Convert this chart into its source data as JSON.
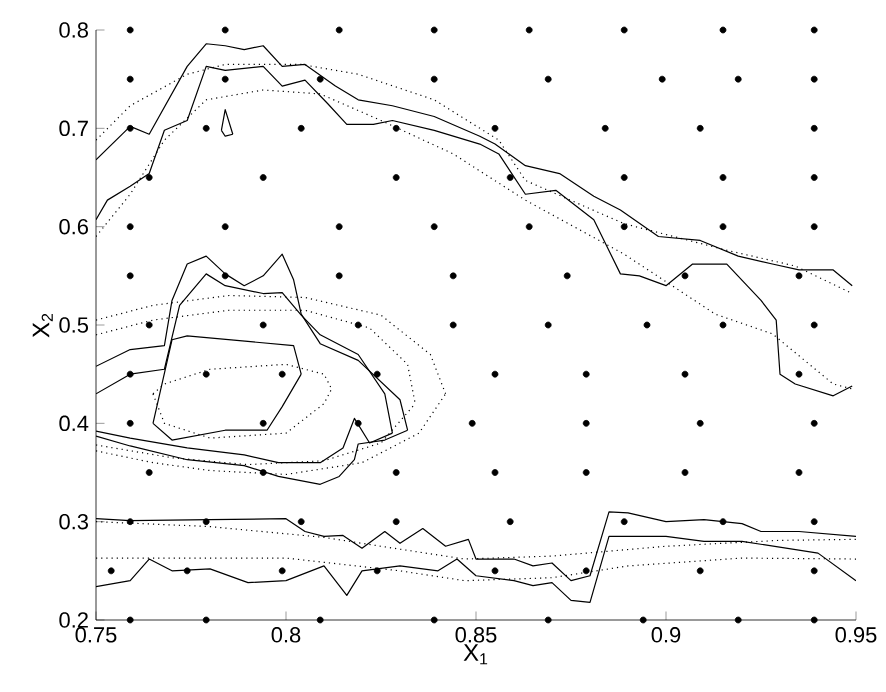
{
  "chart_data": {
    "type": "line",
    "xlabel": "X$_{1}$",
    "ylabel": "X$_{2}$",
    "xlim": [
      0.75,
      0.95
    ],
    "ylim": [
      0.2,
      0.8
    ],
    "xticks": [
      0.75,
      0.8,
      0.85,
      0.9,
      0.95
    ],
    "yticks": [
      0.2,
      0.3,
      0.4,
      0.5,
      0.6,
      0.7,
      0.8
    ],
    "grid": false,
    "series": [
      {
        "type": "scatter",
        "color": "#000000",
        "marker": "circle",
        "x": [
          0.759,
          0.784,
          0.814,
          0.839,
          0.864,
          0.889,
          0.915,
          0.939,
          0.759,
          0.784,
          0.809,
          0.839,
          0.869,
          0.899,
          0.919,
          0.939,
          0.759,
          0.779,
          0.804,
          0.829,
          0.855,
          0.884,
          0.909,
          0.939,
          0.764,
          0.794,
          0.829,
          0.859,
          0.889,
          0.915,
          0.939,
          0.759,
          0.784,
          0.814,
          0.839,
          0.864,
          0.889,
          0.915,
          0.939,
          0.759,
          0.784,
          0.814,
          0.844,
          0.874,
          0.905,
          0.935,
          0.764,
          0.794,
          0.819,
          0.844,
          0.869,
          0.895,
          0.915,
          0.939,
          0.759,
          0.779,
          0.799,
          0.824,
          0.855,
          0.879,
          0.905,
          0.935,
          0.759,
          0.794,
          0.819,
          0.849,
          0.879,
          0.909,
          0.939,
          0.764,
          0.794,
          0.829,
          0.855,
          0.879,
          0.905,
          0.935,
          0.759,
          0.779,
          0.804,
          0.829,
          0.859,
          0.889,
          0.915,
          0.939,
          0.754,
          0.774,
          0.799,
          0.824,
          0.855,
          0.879,
          0.909,
          0.939,
          0.759,
          0.779,
          0.809,
          0.839,
          0.869,
          0.894,
          0.919,
          0.939
        ],
        "values": [
          0.8,
          0.8,
          0.8,
          0.8,
          0.8,
          0.8,
          0.8,
          0.8,
          0.75,
          0.75,
          0.75,
          0.75,
          0.75,
          0.75,
          0.75,
          0.75,
          0.7,
          0.7,
          0.7,
          0.7,
          0.7,
          0.7,
          0.7,
          0.7,
          0.65,
          0.65,
          0.65,
          0.65,
          0.65,
          0.65,
          0.65,
          0.6,
          0.6,
          0.6,
          0.6,
          0.6,
          0.6,
          0.6,
          0.6,
          0.55,
          0.55,
          0.55,
          0.55,
          0.55,
          0.55,
          0.55,
          0.5,
          0.5,
          0.5,
          0.5,
          0.5,
          0.5,
          0.5,
          0.5,
          0.45,
          0.45,
          0.45,
          0.45,
          0.45,
          0.45,
          0.45,
          0.45,
          0.4,
          0.4,
          0.4,
          0.4,
          0.4,
          0.4,
          0.4,
          0.35,
          0.35,
          0.35,
          0.35,
          0.35,
          0.35,
          0.35,
          0.3,
          0.3,
          0.3,
          0.3,
          0.3,
          0.3,
          0.3,
          0.3,
          0.25,
          0.25,
          0.25,
          0.25,
          0.25,
          0.25,
          0.25,
          0.25,
          0.2,
          0.2,
          0.2,
          0.2,
          0.2,
          0.2,
          0.2,
          0.2
        ]
      },
      {
        "color": "#000000",
        "line_style": "solid",
        "x": [
          0.75,
          0.759,
          0.764,
          0.774,
          0.779,
          0.784,
          0.789,
          0.794,
          0.799,
          0.805,
          0.813,
          0.819,
          0.828,
          0.839,
          0.851,
          0.855,
          0.863,
          0.872,
          0.881,
          0.888,
          0.898,
          0.909,
          0.919,
          0.928,
          0.935,
          0.944,
          0.949
        ],
        "values": [
          0.668,
          0.702,
          0.694,
          0.763,
          0.786,
          0.784,
          0.78,
          0.784,
          0.763,
          0.765,
          0.743,
          0.729,
          0.723,
          0.712,
          0.692,
          0.684,
          0.662,
          0.654,
          0.631,
          0.617,
          0.59,
          0.586,
          0.57,
          0.562,
          0.556,
          0.556,
          0.54
        ]
      },
      {
        "color": "#000000",
        "line_style": "solid",
        "x": [
          0.75,
          0.753,
          0.759,
          0.764,
          0.768,
          0.774,
          0.779,
          0.784,
          0.794,
          0.799,
          0.805,
          0.811,
          0.816,
          0.823,
          0.828,
          0.839,
          0.851,
          0.856,
          0.863,
          0.871,
          0.881,
          0.888,
          0.893,
          0.9,
          0.907,
          0.916,
          0.925,
          0.929,
          0.93,
          0.934,
          0.944,
          0.949
        ],
        "values": [
          0.607,
          0.627,
          0.641,
          0.654,
          0.698,
          0.708,
          0.763,
          0.759,
          0.763,
          0.743,
          0.749,
          0.725,
          0.704,
          0.704,
          0.708,
          0.698,
          0.684,
          0.674,
          0.633,
          0.637,
          0.607,
          0.552,
          0.55,
          0.54,
          0.562,
          0.562,
          0.525,
          0.505,
          0.45,
          0.44,
          0.428,
          0.438
        ]
      },
      {
        "color": "#000000",
        "line_style": "dotted",
        "x": [
          0.75,
          0.759,
          0.774,
          0.784,
          0.804,
          0.819,
          0.839,
          0.856,
          0.863,
          0.889,
          0.916,
          0.934,
          0.949
        ],
        "values": [
          0.688,
          0.723,
          0.755,
          0.765,
          0.765,
          0.755,
          0.729,
          0.688,
          0.647,
          0.603,
          0.576,
          0.56,
          0.532
        ]
      },
      {
        "color": "#000000",
        "line_style": "dotted",
        "x": [
          0.75,
          0.759,
          0.768,
          0.779,
          0.794,
          0.809,
          0.825,
          0.844,
          0.863,
          0.889,
          0.913,
          0.928,
          0.944,
          0.949
        ],
        "values": [
          0.59,
          0.633,
          0.688,
          0.729,
          0.739,
          0.735,
          0.708,
          0.674,
          0.627,
          0.572,
          0.511,
          0.491,
          0.44,
          0.435
        ]
      },
      {
        "color": "#000000",
        "line_style": "solid",
        "x": [
          0.75,
          0.759,
          0.768,
          0.77,
          0.774,
          0.779,
          0.784,
          0.789,
          0.794,
          0.799,
          0.802,
          0.804,
          0.809,
          0.819,
          0.83,
          0.832
        ],
        "values": [
          0.458,
          0.475,
          0.479,
          0.525,
          0.562,
          0.57,
          0.552,
          0.54,
          0.55,
          0.572,
          0.546,
          0.511,
          0.481,
          0.464,
          0.424,
          0.393
        ]
      },
      {
        "color": "#000000",
        "line_style": "solid",
        "x": [
          0.75,
          0.759,
          0.774,
          0.789,
          0.798,
          0.809,
          0.814,
          0.818,
          0.819,
          0.826,
          0.832
        ],
        "values": [
          0.387,
          0.377,
          0.363,
          0.357,
          0.346,
          0.338,
          0.346,
          0.363,
          0.379,
          0.383,
          0.393
        ]
      },
      {
        "color": "#000000",
        "line_style": "solid",
        "x": [
          0.75,
          0.759,
          0.768,
          0.772,
          0.779,
          0.784,
          0.794,
          0.799,
          0.804,
          0.809,
          0.819,
          0.826,
          0.828
        ],
        "values": [
          0.43,
          0.45,
          0.455,
          0.52,
          0.552,
          0.54,
          0.532,
          0.533,
          0.51,
          0.49,
          0.47,
          0.43,
          0.39
        ]
      },
      {
        "color": "#000000",
        "line_style": "solid",
        "x": [
          0.75,
          0.759,
          0.774,
          0.789,
          0.798,
          0.809,
          0.815,
          0.818,
          0.822,
          0.828
        ],
        "values": [
          0.392,
          0.385,
          0.375,
          0.368,
          0.36,
          0.36,
          0.375,
          0.405,
          0.38,
          0.39
        ]
      },
      {
        "color": "#000000",
        "line_style": "solid",
        "x": [
          0.765,
          0.77,
          0.774,
          0.802,
          0.804
        ],
        "values": [
          0.4,
          0.485,
          0.489,
          0.479,
          0.45
        ]
      },
      {
        "color": "#000000",
        "line_style": "solid",
        "x": [
          0.765,
          0.77,
          0.784,
          0.795,
          0.799,
          0.804
        ],
        "values": [
          0.4,
          0.383,
          0.393,
          0.393,
          0.417,
          0.45
        ]
      },
      {
        "color": "#000000",
        "line_style": "dotted",
        "x": [
          0.75,
          0.765,
          0.785,
          0.805,
          0.825,
          0.838,
          0.842
        ],
        "values": [
          0.505,
          0.52,
          0.53,
          0.528,
          0.51,
          0.47,
          0.43
        ]
      },
      {
        "color": "#000000",
        "line_style": "dotted",
        "x": [
          0.75,
          0.765,
          0.78,
          0.8,
          0.82,
          0.835,
          0.842
        ],
        "values": [
          0.372,
          0.36,
          0.352,
          0.348,
          0.36,
          0.39,
          0.43
        ]
      },
      {
        "color": "#000000",
        "line_style": "dotted",
        "x": [
          0.75,
          0.765,
          0.785,
          0.805,
          0.822,
          0.832,
          0.834
        ],
        "values": [
          0.49,
          0.505,
          0.515,
          0.515,
          0.497,
          0.46,
          0.42
        ]
      },
      {
        "color": "#000000",
        "line_style": "dotted",
        "x": [
          0.75,
          0.77,
          0.79,
          0.81,
          0.825,
          0.834
        ],
        "values": [
          0.378,
          0.365,
          0.358,
          0.362,
          0.38,
          0.42
        ]
      },
      {
        "color": "#000000",
        "line_style": "dotted",
        "x": [
          0.765,
          0.768,
          0.78,
          0.8,
          0.81,
          0.812
        ],
        "values": [
          0.43,
          0.44,
          0.455,
          0.46,
          0.45,
          0.435
        ]
      },
      {
        "color": "#000000",
        "line_style": "dotted",
        "x": [
          0.765,
          0.768,
          0.78,
          0.8,
          0.81,
          0.812
        ],
        "values": [
          0.43,
          0.4,
          0.385,
          0.39,
          0.42,
          0.435
        ]
      },
      {
        "color": "#000000",
        "line_style": "solid",
        "x": [
          0.75,
          0.759,
          0.78,
          0.8,
          0.805,
          0.81,
          0.815,
          0.82,
          0.826,
          0.83,
          0.836,
          0.842,
          0.848,
          0.85,
          0.86,
          0.865,
          0.87,
          0.875,
          0.88,
          0.885,
          0.89,
          0.9,
          0.91,
          0.92,
          0.925,
          0.935,
          0.95
        ],
        "values": [
          0.303,
          0.301,
          0.302,
          0.303,
          0.29,
          0.285,
          0.286,
          0.273,
          0.29,
          0.278,
          0.293,
          0.275,
          0.282,
          0.262,
          0.262,
          0.255,
          0.258,
          0.24,
          0.245,
          0.31,
          0.309,
          0.3,
          0.302,
          0.298,
          0.29,
          0.29,
          0.285
        ]
      },
      {
        "color": "#000000",
        "line_style": "solid",
        "x": [
          0.75,
          0.759,
          0.764,
          0.77,
          0.78,
          0.79,
          0.8,
          0.81,
          0.816,
          0.82,
          0.83,
          0.84,
          0.845,
          0.85,
          0.86,
          0.865,
          0.87,
          0.875,
          0.88,
          0.885,
          0.9,
          0.91,
          0.92,
          0.94,
          0.95
        ],
        "values": [
          0.234,
          0.24,
          0.262,
          0.25,
          0.252,
          0.238,
          0.24,
          0.255,
          0.225,
          0.25,
          0.255,
          0.25,
          0.262,
          0.245,
          0.24,
          0.235,
          0.238,
          0.22,
          0.218,
          0.285,
          0.285,
          0.28,
          0.28,
          0.268,
          0.24
        ]
      },
      {
        "color": "#000000",
        "line_style": "dotted",
        "x": [
          0.75,
          0.78,
          0.81,
          0.83,
          0.847,
          0.87,
          0.9,
          0.93,
          0.95
        ],
        "values": [
          0.3,
          0.295,
          0.284,
          0.272,
          0.262,
          0.265,
          0.275,
          0.281,
          0.282
        ]
      },
      {
        "color": "#000000",
        "line_style": "dotted",
        "x": [
          0.75,
          0.8,
          0.83,
          0.847,
          0.87,
          0.89,
          0.92,
          0.95
        ],
        "values": [
          0.263,
          0.263,
          0.25,
          0.24,
          0.243,
          0.255,
          0.263,
          0.262
        ]
      },
      {
        "color": "#000000",
        "line_style": "solid",
        "x": [
          0.783,
          0.784,
          0.786
        ],
        "values": [
          0.698,
          0.719,
          0.694
        ]
      },
      {
        "color": "#000000",
        "line_style": "solid",
        "x": [
          0.783,
          0.784,
          0.786
        ],
        "values": [
          0.698,
          0.692,
          0.694
        ]
      }
    ]
  }
}
